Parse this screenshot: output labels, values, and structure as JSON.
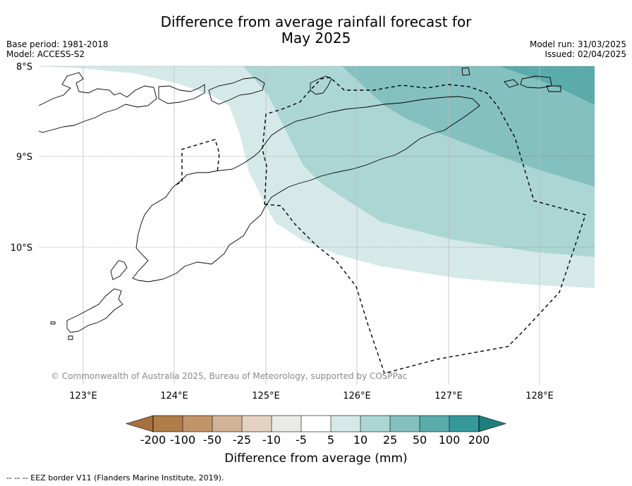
{
  "title": {
    "line1": "Difference from average rainfall forecast for",
    "line2": "May 2025"
  },
  "meta_left": {
    "base_period": "Base period: 1981-2018",
    "model": "Model: ACCESS-S2"
  },
  "meta_right": {
    "model_run": "Model run: 31/03/2025",
    "issued": "Issued: 02/04/2025"
  },
  "map": {
    "lat_labels": [
      "8°S",
      "9°S",
      "10°S"
    ],
    "lon_labels": [
      "123°E",
      "124°E",
      "125°E",
      "126°E",
      "127°E",
      "128°E"
    ],
    "extent": {
      "lon_min": 122.45,
      "lon_max": 128.6,
      "lat_min": -11.55,
      "lat_max": -8.0
    },
    "copyright": "© Commonwealth of Australia 2025, Bureau of Meteorology, supported by COSPPac",
    "region_colors": {
      "5_to_10": "#d5eae8",
      "10_to_25": "#acd6d4",
      "25_to_50": "#84c0bf",
      "50_to_100": "#5aabaa"
    }
  },
  "colorbar": {
    "title": "Difference from average (mm)",
    "ticks": [
      "-200",
      "-100",
      "-50",
      "-25",
      "-10",
      "-5",
      "5",
      "10",
      "25",
      "50",
      "100",
      "200"
    ],
    "colors": [
      "#a5713f",
      "#af7d49",
      "#c1946a",
      "#d3b396",
      "#e3d2c2",
      "#eaeae8",
      "#ffffff",
      "#d5eae8",
      "#acd6d4",
      "#84c0bf",
      "#5aabaa",
      "#35999a",
      "#207e7e"
    ]
  },
  "footnote": "-- -- -- EEZ border V11 (Flanders Marine Institute, 2019)."
}
